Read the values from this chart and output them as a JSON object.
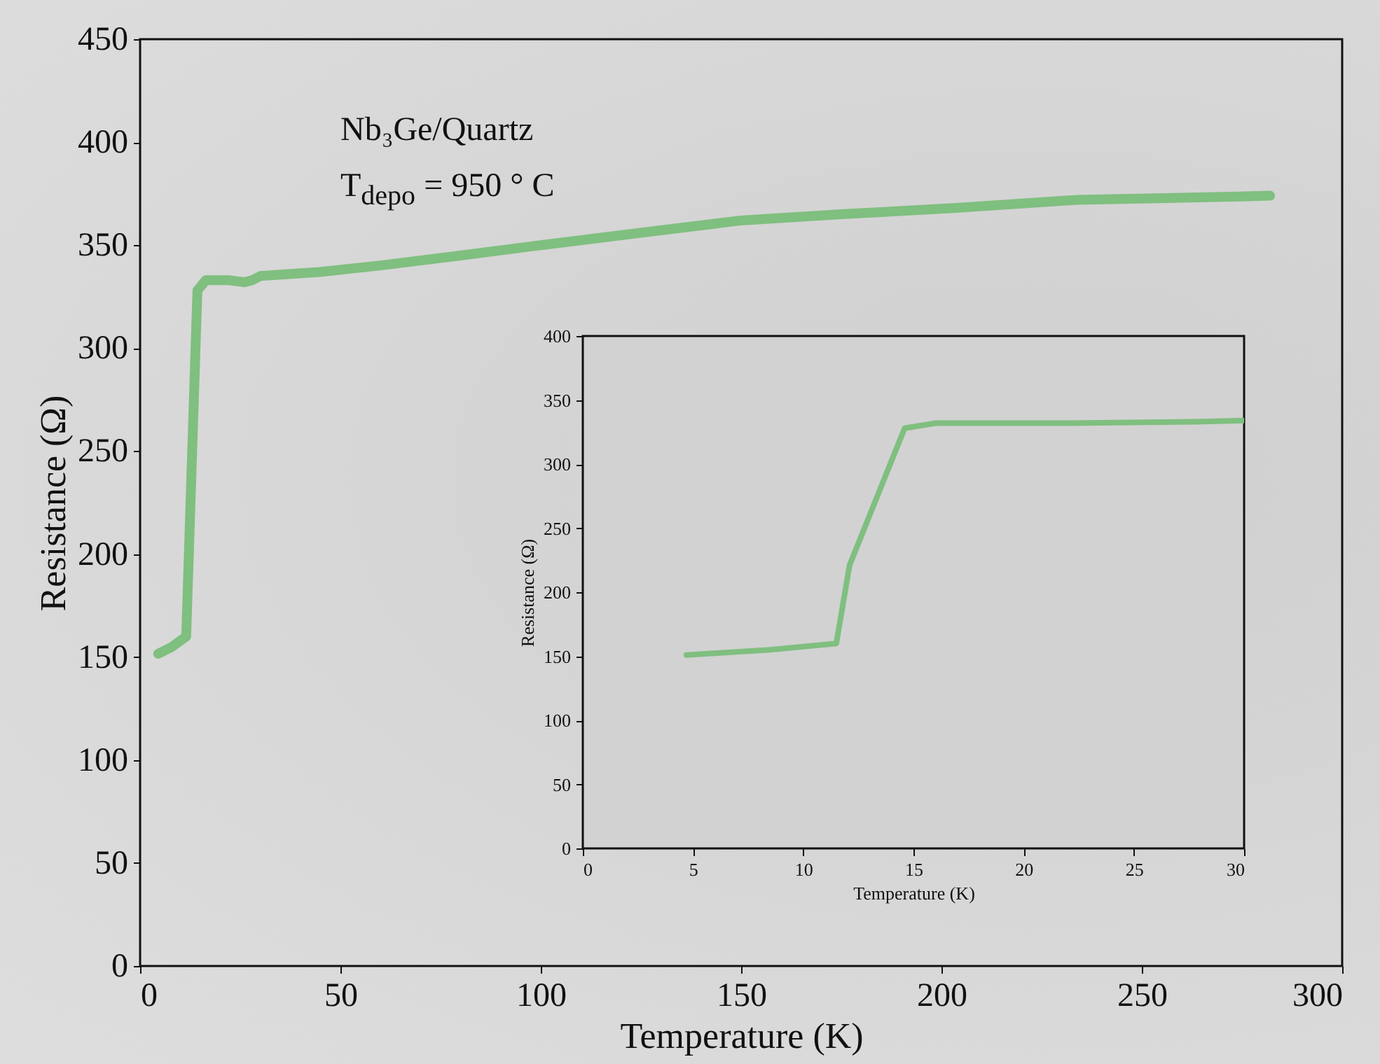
{
  "chart_data": [
    {
      "type": "line",
      "xlabel": "Temperature (K)",
      "ylabel": "Resistance (Ω)",
      "annotations": [
        "Nb₃Ge/Quartz",
        "T$_{depo}$ = 950 ° C"
      ],
      "x": [
        4.5,
        8,
        11.5,
        12.5,
        14.3,
        16.4,
        22,
        26,
        28,
        30,
        45,
        59.4,
        80,
        100,
        125,
        150,
        175,
        203,
        234,
        260,
        282
      ],
      "series": [
        {
          "color": "#7fbf7f",
          "values": [
            151.6,
            155,
            160,
            220,
            328,
            333,
            333,
            332,
            333,
            335,
            337,
            340,
            345,
            350,
            356,
            362,
            365,
            368,
            372,
            373,
            374
          ]
        }
      ],
      "xlim": [
        0,
        300
      ],
      "xticks": [
        0,
        50,
        100,
        150,
        200,
        250,
        300
      ],
      "ylim": [
        0,
        450
      ],
      "yticks": [
        0,
        50,
        100,
        150,
        200,
        250,
        300,
        350,
        400,
        450
      ]
    },
    {
      "type": "line",
      "xlabel": "Temperature (K)",
      "ylabel": "Resistance (Ω)",
      "x": [
        4.7,
        8.5,
        11.5,
        12.1,
        14.6,
        16.0,
        22,
        27.8,
        30
      ],
      "series": [
        {
          "color": "#7fbf7f",
          "values": [
            151,
            155,
            160,
            221,
            328,
            332,
            332,
            333,
            334
          ]
        }
      ],
      "xlim": [
        0,
        30
      ],
      "xticks": [
        0,
        5,
        10,
        15,
        20,
        25,
        30
      ],
      "ylim": [
        0,
        400
      ],
      "yticks": [
        0,
        50,
        100,
        150,
        200,
        250,
        300,
        350,
        400
      ]
    }
  ]
}
